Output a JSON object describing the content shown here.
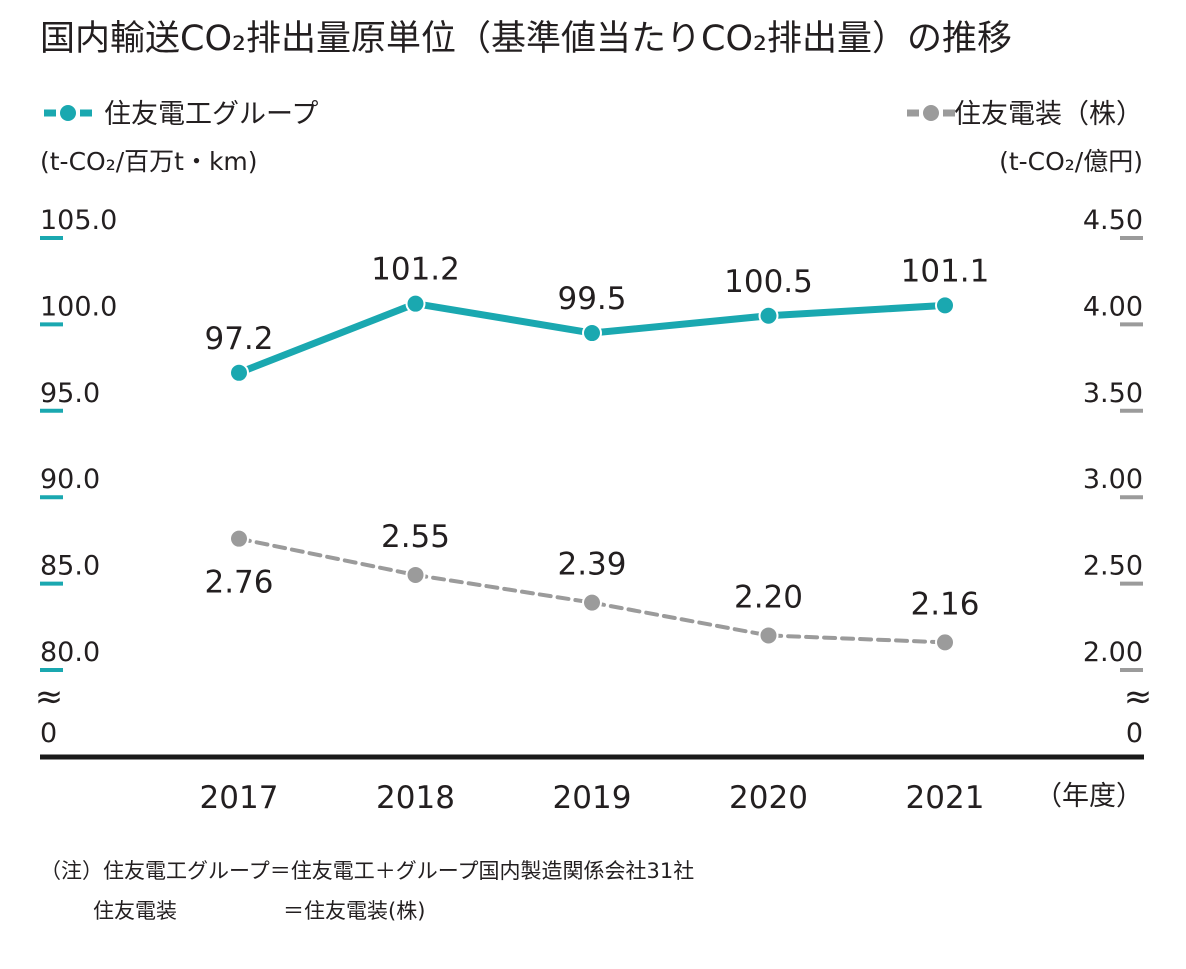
{
  "chart_data": {
    "type": "line",
    "title": "国内輸送CO₂排出量原単位（基準値当たりCO₂排出量）の推移",
    "categories": [
      "2017",
      "2018",
      "2019",
      "2020",
      "2021"
    ],
    "x_unit": "（年度）",
    "series": [
      {
        "name": "住友電工グループ",
        "axis": "left",
        "values": [
          97.2,
          101.2,
          99.5,
          100.5,
          101.1
        ],
        "labels": [
          "97.2",
          "101.2",
          "99.5",
          "100.5",
          "101.1"
        ],
        "color": "#1aa8b0",
        "style": "solid"
      },
      {
        "name": "住友電装（株）",
        "axis": "right",
        "values": [
          2.76,
          2.55,
          2.39,
          2.2,
          2.16
        ],
        "labels": [
          "2.76",
          "2.55",
          "2.39",
          "2.20",
          "2.16"
        ],
        "color": "#9b9b9b",
        "style": "dashed"
      }
    ],
    "y_left": {
      "unit": "(t-CO₂/百万t・km)",
      "ylim": [
        80,
        105
      ],
      "ticks": [
        105,
        100,
        95,
        90,
        85,
        80
      ],
      "tick_labels": [
        "105.0",
        "100.0",
        "95.0",
        "90.0",
        "85.0",
        "80.0"
      ],
      "zero_label": "0"
    },
    "y_right": {
      "unit": "(t-CO₂/億円)",
      "ylim": [
        2.0,
        4.5
      ],
      "ticks": [
        4.5,
        4.0,
        3.5,
        3.0,
        2.5,
        2.0
      ],
      "tick_labels": [
        "4.50",
        "4.00",
        "3.50",
        "3.00",
        "2.50",
        "2.00"
      ],
      "zero_label": "0"
    },
    "break_symbol": "≈",
    "legend_position": "top"
  },
  "notes": {
    "line1": "（注）住友電工グループ＝住友電工＋グループ国内製造関係会社31社",
    "line2_left": "住友電装",
    "line2_right": "＝住友電装(株)"
  },
  "colors": {
    "teal": "#1aa8b0",
    "gray": "#9b9b9b",
    "text": "#231f20",
    "baseline": "#1a1a1a"
  }
}
